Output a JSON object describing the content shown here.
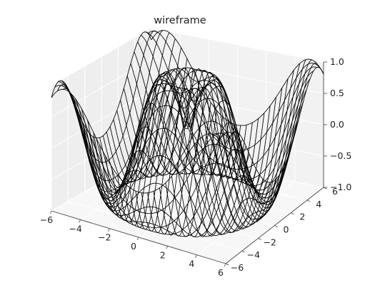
{
  "chart_data": {
    "type": "wireframe",
    "title": "wireframe",
    "function": "z = sin(sqrt(x^2 + y^2))",
    "xlabel": "",
    "ylabel": "",
    "zlabel": "",
    "x_range": [
      -6,
      6
    ],
    "y_range": [
      -6,
      6
    ],
    "z_range": [
      -1,
      1
    ],
    "grid_samples": 30,
    "x_ticks": [
      "−6",
      "−4",
      "−2",
      "0",
      "2",
      "4",
      "6"
    ],
    "y_ticks": [
      "−6",
      "−4",
      "−2",
      "0",
      "2",
      "4",
      "6"
    ],
    "z_ticks": [
      "−1.0",
      "−0.5",
      "0.0",
      "0.5",
      "1.0"
    ],
    "grid": true,
    "wire_color": "#000000",
    "pane_color": "#f2f2f2",
    "gridline_color": "#ffffff"
  }
}
